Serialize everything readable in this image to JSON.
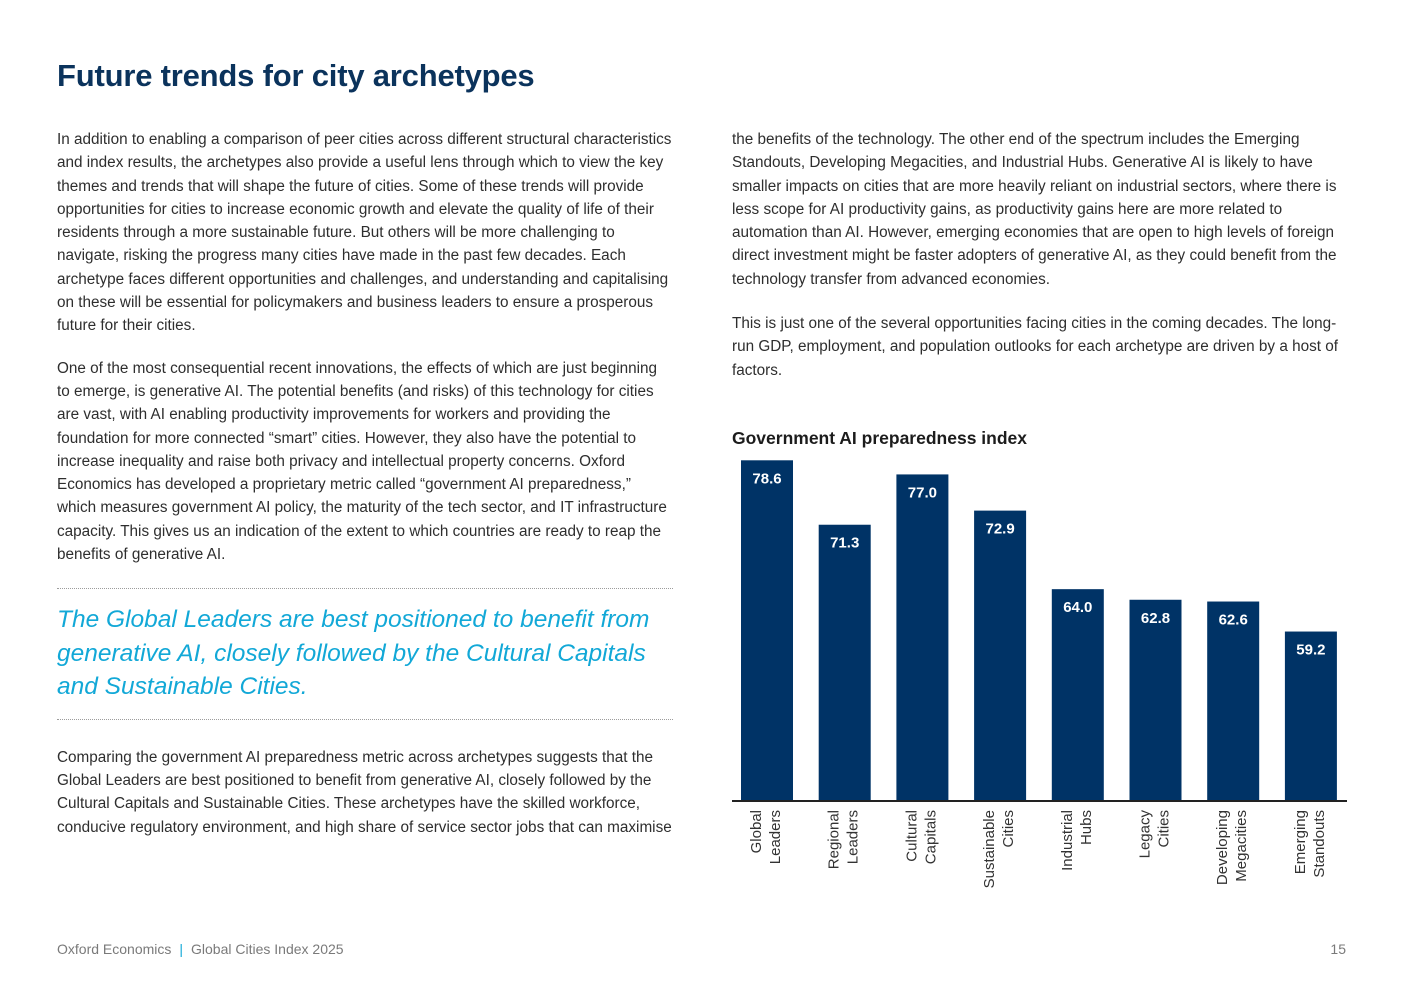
{
  "page": {
    "title": "Future trends for city archetypes",
    "left_paragraphs": [
      "In addition to enabling a comparison of peer cities across different structural characteristics and index results, the archetypes also provide a useful lens through which to view the key themes and trends that will shape the future of cities. Some of these trends will provide opportunities for cities to increase economic growth and elevate the quality of life of their residents through a more sustainable future. But others will be more challenging to navigate, risking the progress many cities have made in the past few decades. Each archetype faces different opportunities and challenges, and understanding and capitalising on these will be essential for policymakers and business leaders to ensure a prosperous future for their cities.",
      "One of the most consequential recent innovations, the effects of which are just beginning to emerge, is generative AI. The potential benefits (and risks) of this technology for cities are vast, with AI enabling productivity improvements for workers and providing the foundation for more connected “smart” cities. However, they also have the potential to increase inequality and raise both privacy and intellectual property concerns. Oxford Economics has developed a proprietary metric called “government AI preparedness,” which measures government AI policy, the maturity of the tech sector, and IT infrastructure capacity. This gives us an indication of the extent to which countries are ready to reap the benefits of generative AI."
    ],
    "pull_quote": "The Global Leaders are best positioned to benefit from generative AI, closely followed by the Cultural Capitals and Sustainable Cities.",
    "left_after_quote": "Comparing the government AI preparedness metric across archetypes suggests that the Global Leaders are best positioned to benefit from generative AI, closely followed by the Cultural Capitals and Sustainable Cities. These archetypes have the skilled workforce, conducive regulatory environment, and high share of service sector jobs that can maximise",
    "right_paragraphs": [
      "the benefits of the technology. The other end of the spectrum includes the Emerging Standouts, Developing Megacities, and Industrial Hubs. Generative AI is likely to have smaller impacts on cities that are more heavily reliant on industrial sectors, where there is less scope for AI productivity gains, as productivity gains here are more related to automation than AI. However, emerging economies that are open to high levels of foreign direct investment might be faster adopters of generative AI, as they could benefit from the technology transfer from advanced economies.",
      "This is just one of the several opportunities facing cities in the coming decades. The long-run GDP, employment, and population outlooks for each archetype are driven by a host of factors."
    ],
    "footer": {
      "publisher": "Oxford Economics",
      "separator": "|",
      "report": "Global Cities Index 2025",
      "page_number": "15"
    }
  },
  "colors": {
    "title": "#0b335c",
    "bar": "#003366",
    "quote": "#12a8d7",
    "body_text": "#2e2e2e"
  },
  "chart_data": {
    "type": "bar",
    "title": "Government AI preparedness index",
    "categories": [
      [
        "Global",
        "Leaders"
      ],
      [
        "Regional",
        "Leaders"
      ],
      [
        "Cultural",
        "Capitals"
      ],
      [
        "Sustainable",
        "Cities"
      ],
      [
        "Industrial",
        "Hubs"
      ],
      [
        "Legacy",
        "Cities"
      ],
      [
        "Developing",
        "Megacities"
      ],
      [
        "Emerging",
        "Standouts"
      ]
    ],
    "values": [
      78.6,
      71.3,
      77.0,
      72.9,
      64.0,
      62.8,
      62.6,
      59.2
    ],
    "value_labels": [
      "78.6",
      "71.3",
      "77.0",
      "72.9",
      "64.0",
      "62.8",
      "62.6",
      "59.2"
    ],
    "ylim": [
      40,
      80
    ],
    "grid": false,
    "legend": "none",
    "data_labels": "inside-top, white"
  }
}
